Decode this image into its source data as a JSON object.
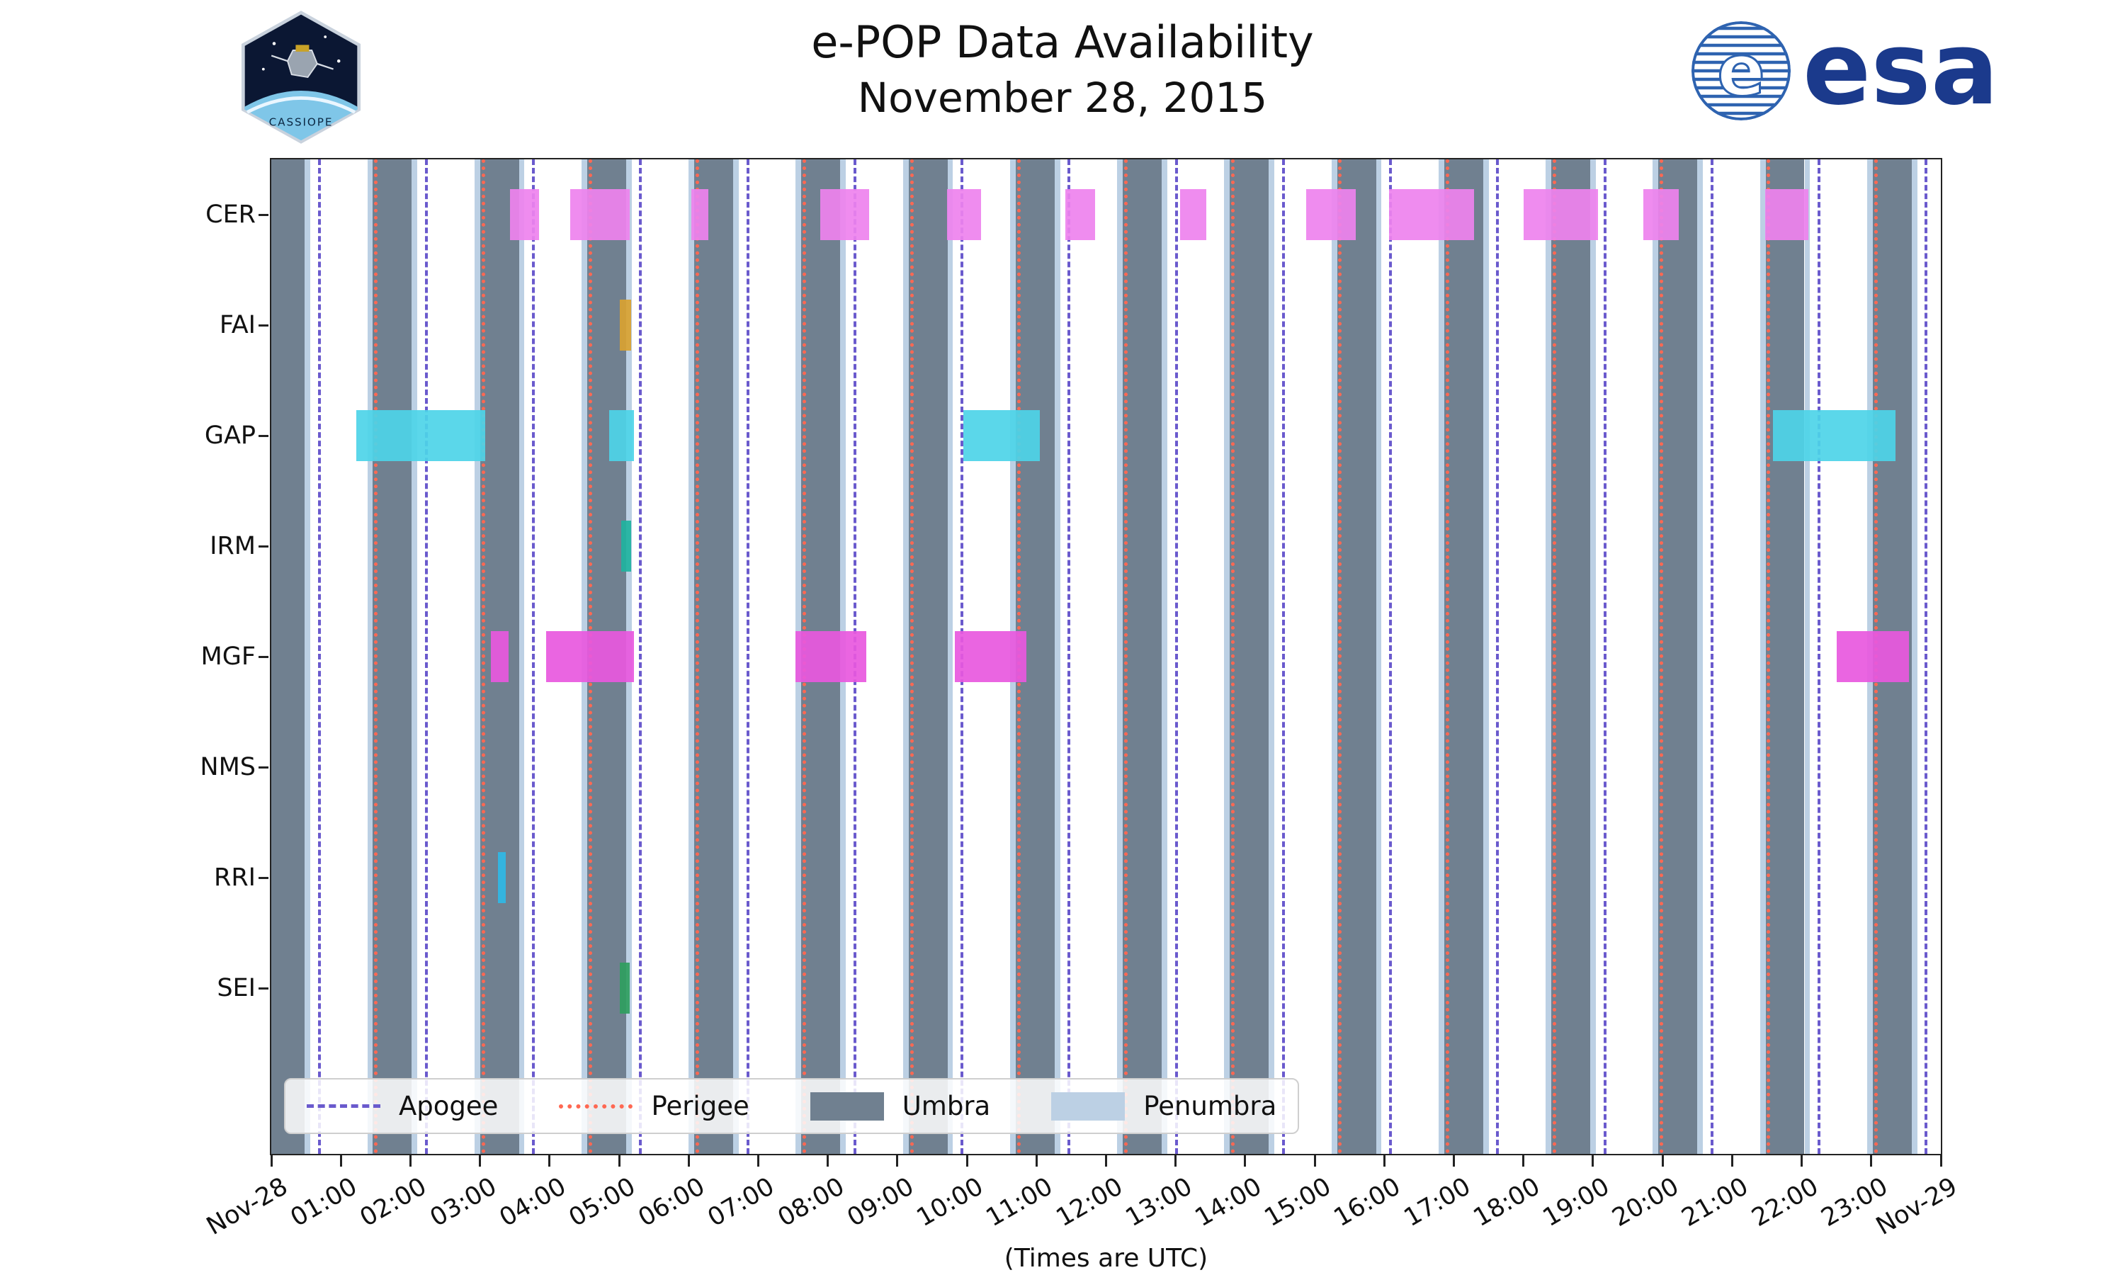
{
  "header": {
    "title_line1": "e-POP Data Availability",
    "title_line2": "November 28, 2015"
  },
  "logos": {
    "cassiope_text": "CASSIOPE",
    "esa_text": "esa",
    "esa_globe_letter": "e"
  },
  "chart_data": {
    "type": "timeline-bar",
    "title": "e-POP Data Availability — November 28, 2015",
    "xlabel": "(Times are UTC)",
    "x_axis": {
      "start_hour": 0,
      "end_hour": 24,
      "tick_interval_hours": 1,
      "tick_labels": [
        "Nov-28",
        "01:00",
        "02:00",
        "03:00",
        "04:00",
        "05:00",
        "06:00",
        "07:00",
        "08:00",
        "09:00",
        "10:00",
        "11:00",
        "12:00",
        "13:00",
        "14:00",
        "15:00",
        "16:00",
        "17:00",
        "18:00",
        "19:00",
        "20:00",
        "21:00",
        "22:00",
        "23:00",
        "Nov-29"
      ]
    },
    "y_categories": [
      "CER",
      "FAI",
      "GAP",
      "IRM",
      "MGF",
      "NMS",
      "RRI",
      "SEI"
    ],
    "series": [
      {
        "name": "CER",
        "color": "#ee82ee",
        "intervals": [
          [
            3.43,
            3.85
          ],
          [
            4.3,
            5.15
          ],
          [
            6.04,
            6.28
          ],
          [
            7.89,
            8.59
          ],
          [
            9.71,
            10.2
          ],
          [
            11.41,
            11.84
          ],
          [
            13.06,
            13.44
          ],
          [
            14.88,
            15.59
          ],
          [
            16.07,
            17.29
          ],
          [
            18.0,
            19.07
          ],
          [
            19.72,
            20.23
          ],
          [
            21.47,
            22.1
          ]
        ]
      },
      {
        "name": "FAI",
        "color": "#d9a231",
        "intervals": [
          [
            5.01,
            5.17
          ]
        ]
      },
      {
        "name": "GAP",
        "color": "#4dd4e8",
        "intervals": [
          [
            1.22,
            3.08
          ],
          [
            4.86,
            5.21
          ],
          [
            9.95,
            11.05
          ],
          [
            21.59,
            23.35
          ]
        ]
      },
      {
        "name": "IRM",
        "color": "#1fb3a0",
        "intervals": [
          [
            5.03,
            5.17
          ]
        ]
      },
      {
        "name": "MGF",
        "color": "#e858de",
        "intervals": [
          [
            3.16,
            3.41
          ],
          [
            3.95,
            5.21
          ],
          [
            7.54,
            8.55
          ],
          [
            9.83,
            10.85
          ],
          [
            22.5,
            23.54
          ]
        ]
      },
      {
        "name": "NMS",
        "color": "#999999",
        "intervals": []
      },
      {
        "name": "RRI",
        "color": "#2fb9e6",
        "intervals": [
          [
            3.26,
            3.37
          ]
        ]
      },
      {
        "name": "SEI",
        "color": "#2f9e5f",
        "intervals": [
          [
            5.01,
            5.15
          ]
        ]
      }
    ],
    "shadow": {
      "umbra": {
        "color": "#708090",
        "intervals": [
          [
            0.0,
            0.48
          ],
          [
            1.46,
            2.02
          ],
          [
            3.0,
            3.56
          ],
          [
            4.54,
            5.1
          ],
          [
            6.08,
            6.64
          ],
          [
            7.62,
            8.18
          ],
          [
            9.16,
            9.72
          ],
          [
            10.7,
            11.26
          ],
          [
            12.24,
            12.8
          ],
          [
            13.78,
            14.34
          ],
          [
            15.32,
            15.88
          ],
          [
            16.86,
            17.42
          ],
          [
            18.4,
            18.96
          ],
          [
            19.94,
            20.5
          ],
          [
            21.48,
            22.04
          ],
          [
            23.02,
            23.58
          ]
        ]
      },
      "penumbra": {
        "color": "#bcd0e4",
        "margin_hours": 0.08
      }
    },
    "events": {
      "apogee": {
        "color": "#6a5acd",
        "line_style": "dashed",
        "times": [
          0.69,
          2.23,
          3.77,
          5.31,
          6.85,
          8.39,
          9.93,
          11.47,
          13.01,
          14.55,
          16.09,
          17.63,
          19.17,
          20.71,
          22.25,
          23.79
        ]
      },
      "perigee": {
        "color": "#ff6852",
        "line_style": "dotted",
        "times": [
          1.5,
          3.04,
          4.58,
          6.12,
          7.66,
          9.2,
          10.74,
          12.28,
          13.82,
          15.36,
          16.9,
          18.44,
          19.98,
          21.52,
          23.06
        ]
      }
    },
    "legend": {
      "position": "lower-left",
      "items": [
        {
          "label": "Apogee",
          "swatch": "dashed-line",
          "color": "#6a5acd"
        },
        {
          "label": "Perigee",
          "swatch": "dotted-line",
          "color": "#ff6852"
        },
        {
          "label": "Umbra",
          "swatch": "patch",
          "color": "#708090"
        },
        {
          "label": "Penumbra",
          "swatch": "patch",
          "color": "#bcd0e4"
        }
      ]
    }
  }
}
